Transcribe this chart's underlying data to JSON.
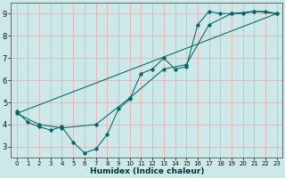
{
  "xlabel": "Humidex (Indice chaleur)",
  "bg_color": "#cce8e8",
  "grid_color": "#e8b0b0",
  "line_color": "#006666",
  "xlim": [
    -0.5,
    23.5
  ],
  "ylim": [
    2.5,
    9.5
  ],
  "xticks": [
    0,
    1,
    2,
    3,
    4,
    5,
    6,
    7,
    8,
    9,
    10,
    11,
    12,
    13,
    14,
    15,
    16,
    17,
    18,
    19,
    20,
    21,
    22,
    23
  ],
  "yticks": [
    3,
    4,
    5,
    6,
    7,
    8,
    9
  ],
  "line1_x": [
    0,
    1,
    2,
    3,
    4,
    5,
    6,
    7,
    8,
    9,
    10,
    11,
    12,
    13,
    14,
    15,
    16,
    17,
    18,
    19,
    20,
    21,
    22,
    23
  ],
  "line1_y": [
    4.6,
    4.1,
    3.9,
    3.75,
    3.9,
    3.2,
    2.72,
    2.9,
    3.55,
    4.7,
    5.15,
    6.3,
    6.5,
    7.0,
    6.5,
    6.6,
    8.5,
    9.1,
    9.0,
    9.0,
    9.0,
    9.1,
    9.1,
    9.0
  ],
  "line2_x": [
    0,
    2,
    4,
    7,
    10,
    13,
    15,
    17,
    19,
    21,
    23
  ],
  "line2_y": [
    4.5,
    4.0,
    3.85,
    4.0,
    5.2,
    6.5,
    6.7,
    8.5,
    9.0,
    9.1,
    9.0
  ],
  "line3_x": [
    0,
    23
  ],
  "line3_y": [
    4.5,
    9.0
  ],
  "spine_color": "#555555",
  "xlabel_color": "#003333",
  "xlabel_fontsize": 6.5,
  "tick_fontsize_x": 5.0,
  "tick_fontsize_y": 6.0
}
